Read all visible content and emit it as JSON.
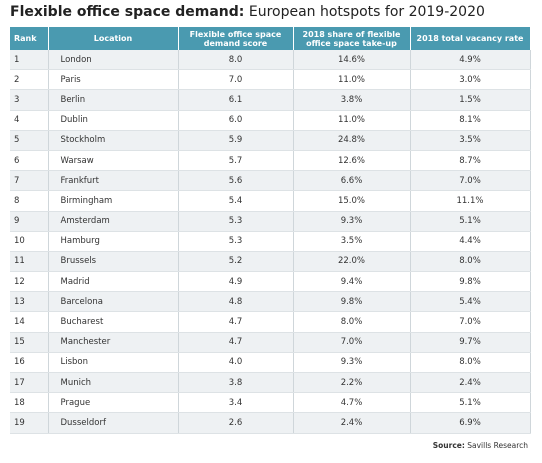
{
  "title": {
    "bold": "Flexible office space demand:",
    "normal": "European hotspots for 2019-2020"
  },
  "table": {
    "header": [
      "Rank",
      "Location",
      "Flexible office space demand score",
      "2018 share of flexible office space take-up",
      "2018 total vacancy rate"
    ],
    "rows": [
      [
        "1",
        "London",
        "8.0",
        "14.6%",
        "4.9%"
      ],
      [
        "2",
        "Paris",
        "7.0",
        "11.0%",
        "3.0%"
      ],
      [
        "3",
        "Berlin",
        "6.1",
        "3.8%",
        "1.5%"
      ],
      [
        "4",
        "Dublin",
        "6.0",
        "11.0%",
        "8.1%"
      ],
      [
        "5",
        "Stockholm",
        "5.9",
        "24.8%",
        "3.5%"
      ],
      [
        "6",
        "Warsaw",
        "5.7",
        "12.6%",
        "8.7%"
      ],
      [
        "7",
        "Frankfurt",
        "5.6",
        "6.6%",
        "7.0%"
      ],
      [
        "8",
        "Birmingham",
        "5.4",
        "15.0%",
        "11.1%"
      ],
      [
        "9",
        "Amsterdam",
        "5.3",
        "9.3%",
        "5.1%"
      ],
      [
        "10",
        "Hamburg",
        "5.3",
        "3.5%",
        "4.4%"
      ],
      [
        "11",
        "Brussels",
        "5.2",
        "22.0%",
        "8.0%"
      ],
      [
        "12",
        "Madrid",
        "4.9",
        "9.4%",
        "9.8%"
      ],
      [
        "13",
        "Barcelona",
        "4.8",
        "9.8%",
        "5.4%"
      ],
      [
        "14",
        "Bucharest",
        "4.7",
        "8.0%",
        "7.0%"
      ],
      [
        "15",
        "Manchester",
        "4.7",
        "7.0%",
        "9.7%"
      ],
      [
        "16",
        "Lisbon",
        "4.0",
        "9.3%",
        "8.0%"
      ],
      [
        "17",
        "Munich",
        "3.8",
        "2.2%",
        "2.4%"
      ],
      [
        "18",
        "Prague",
        "3.4",
        "4.7%",
        "5.1%"
      ],
      [
        "19",
        "Dusseldorf",
        "2.6",
        "2.4%",
        "6.9%"
      ]
    ]
  },
  "source": {
    "label": "Source:",
    "text": "Savills Research"
  }
}
